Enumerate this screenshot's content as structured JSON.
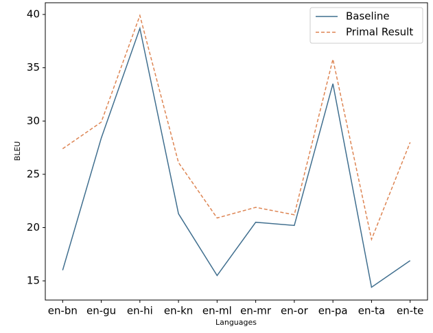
{
  "chart_data": {
    "type": "line",
    "x_label": "Languages",
    "y_label": "BLEU",
    "categories": [
      "en-bn",
      "en-gu",
      "en-hi",
      "en-kn",
      "en-ml",
      "en-mr",
      "en-or",
      "en-pa",
      "en-ta",
      "en-te"
    ],
    "series": [
      {
        "name": "Baseline",
        "color": "#3f6e8e",
        "dash": "solid",
        "values": [
          16.0,
          28.4,
          38.7,
          21.3,
          15.5,
          20.5,
          20.2,
          33.5,
          14.4,
          16.9
        ]
      },
      {
        "name": "Primal Result",
        "color": "#dd8452",
        "dash": "dashed",
        "values": [
          27.4,
          29.9,
          39.9,
          26.1,
          20.9,
          21.9,
          21.2,
          35.8,
          18.9,
          28.0
        ]
      }
    ],
    "ylim": [
      13.2,
      41.1
    ],
    "yticks": [
      15,
      20,
      25,
      30,
      35,
      40
    ],
    "grid": false,
    "legend": "upper right"
  }
}
